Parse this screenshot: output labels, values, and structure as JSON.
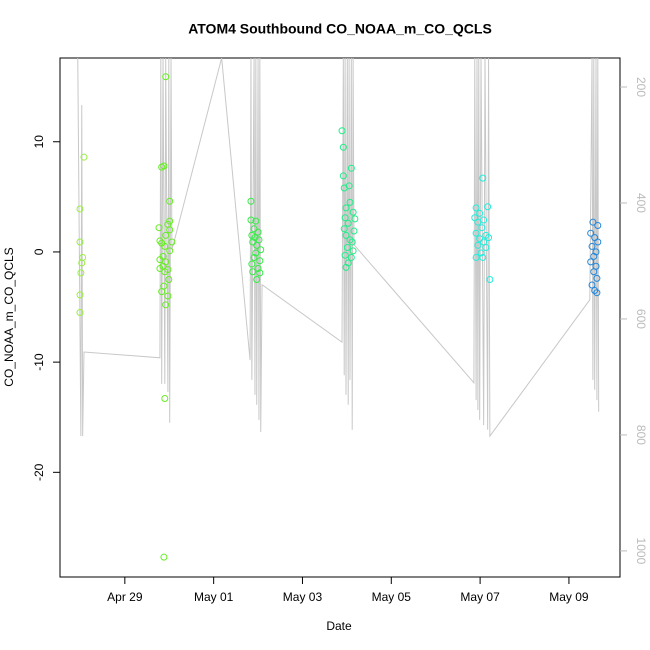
{
  "chart_data": {
    "type": "scatter",
    "title": "ATOM4 Southbound CO_NOAA_m_CO_QCLS",
    "x_label": "Date",
    "y_label": "CO_NOAA_m_CO_QCLS",
    "xlim": [
      27.54,
      40.15
    ],
    "xticks": [
      {
        "value": 29,
        "label": "Apr 29"
      },
      {
        "value": 31,
        "label": "May 01"
      },
      {
        "value": 33,
        "label": "May 03"
      },
      {
        "value": 35,
        "label": "May 05"
      },
      {
        "value": 37,
        "label": "May 07"
      },
      {
        "value": 39,
        "label": "May 09"
      }
    ],
    "ylim": [
      -29.5,
      17.6
    ],
    "yticks": [
      -20,
      -10,
      0,
      10
    ],
    "y2lim": [
      1045,
      150
    ],
    "y2ticks": [
      200,
      400,
      600,
      800,
      1000
    ],
    "y2_color": "#bbbbbb",
    "series": [
      {
        "type": "line",
        "axis": "y2",
        "color": "#c8c8c8",
        "x": [
          27.94,
          28.01,
          28.03,
          28.05,
          28.08,
          29.79,
          29.81,
          29.83,
          29.86,
          29.9,
          29.92,
          29.97,
          29.99,
          30.01,
          30.04,
          30.06,
          31.18,
          31.82,
          31.84,
          31.86,
          31.91,
          31.93,
          31.95,
          31.97,
          32.0,
          32.02,
          32.04,
          32.06,
          32.09,
          33.89,
          33.92,
          33.94,
          33.96,
          33.98,
          34.01,
          34.03,
          34.05,
          34.07,
          34.1,
          34.12,
          34.14,
          34.16,
          36.86,
          36.88,
          36.91,
          36.93,
          36.95,
          36.97,
          36.99,
          37.02,
          37.08,
          37.11,
          37.17,
          37.19,
          37.22,
          39.47,
          39.52,
          39.54,
          39.56,
          39.58,
          39.61,
          39.63,
          39.65,
          39.67
        ],
        "values": [
          150,
          802,
          231,
          802,
          657,
          667,
          150,
          712,
          150,
          712,
          150,
          726,
          150,
          779,
          150,
          481,
          150,
          671,
          150,
          705,
          150,
          731,
          150,
          748,
          150,
          774,
          150,
          795,
          541,
          640,
          150,
          697,
          150,
          731,
          150,
          748,
          150,
          705,
          150,
          791,
          150,
          472,
          710,
          150,
          740,
          150,
          757,
          150,
          774,
          150,
          783,
          150,
          791,
          150,
          802,
          567,
          150,
          705,
          150,
          722,
          150,
          740,
          150,
          760
        ]
      },
      {
        "type": "scatter",
        "color": "#99ee44",
        "x": [
          27.99,
          27.99,
          28.08,
          28.05,
          28.03,
          28.01,
          27.99,
          27.99
        ],
        "values": [
          3.9,
          0.9,
          8.6,
          -0.5,
          -1.0,
          -1.9,
          -3.9,
          -5.5
        ]
      },
      {
        "type": "scatter",
        "color": "#66ee22",
        "x": [
          29.92,
          29.83,
          29.88,
          30.01,
          30.01,
          29.97,
          29.77,
          30.01,
          29.92,
          29.79,
          29.83,
          30.06,
          29.9,
          30.01,
          29.86,
          29.79,
          29.92,
          29.86,
          29.79,
          29.97,
          29.9,
          29.99,
          29.88,
          29.83,
          29.97,
          29.92,
          29.9,
          29.88
        ],
        "values": [
          15.9,
          7.7,
          7.8,
          4.6,
          2.8,
          2.5,
          2.2,
          2.0,
          1.5,
          1.0,
          0.8,
          0.9,
          0.5,
          0.1,
          -0.4,
          -0.7,
          -0.9,
          -1.3,
          -1.5,
          -1.6,
          -1.8,
          -2.5,
          -3.1,
          -3.6,
          -4.0,
          -4.8,
          -13.3,
          -27.7
        ]
      },
      {
        "type": "scatter",
        "color": "#33ee44",
        "x": [
          31.84,
          31.84,
          31.95,
          31.91,
          32.0,
          31.86,
          31.93,
          32.02,
          31.88,
          31.97,
          32.06,
          31.95,
          31.91,
          32.04,
          31.86,
          32.0,
          31.88,
          32.04,
          31.97
        ],
        "values": [
          4.6,
          2.9,
          2.8,
          2.1,
          1.8,
          1.5,
          1.3,
          1.1,
          0.9,
          0.6,
          0.2,
          -0.1,
          -0.5,
          -0.8,
          -1.1,
          -1.5,
          -1.8,
          -1.9,
          -2.5
        ]
      },
      {
        "type": "scatter",
        "color": "#22ee88",
        "x": [
          33.89,
          33.92,
          34.1,
          33.92,
          34.05,
          33.94,
          34.07,
          33.98,
          34.14,
          33.96,
          34.18,
          34.03,
          33.94,
          34.16,
          33.98,
          34.07,
          34.12,
          34.01,
          34.14,
          33.96,
          34.1,
          34.03,
          33.98
        ],
        "values": [
          11.0,
          9.5,
          7.6,
          6.9,
          6.0,
          5.8,
          4.5,
          4.0,
          3.6,
          3.1,
          3.0,
          2.6,
          2.1,
          1.9,
          1.5,
          1.1,
          0.9,
          0.4,
          0.1,
          -0.3,
          -0.5,
          -1.0,
          -1.4
        ]
      },
      {
        "type": "scatter",
        "color": "#22eedd",
        "x": [
          37.06,
          36.91,
          37.17,
          36.99,
          36.88,
          37.08,
          36.95,
          37.04,
          36.91,
          37.13,
          36.99,
          37.19,
          37.08,
          36.95,
          37.13,
          37.02,
          36.91,
          37.06,
          37.22
        ],
        "values": [
          6.7,
          4.0,
          4.1,
          3.5,
          3.1,
          2.9,
          2.7,
          2.2,
          1.7,
          1.5,
          1.2,
          1.3,
          0.9,
          0.6,
          0.4,
          -0.1,
          -0.5,
          -0.5,
          -2.5
        ]
      },
      {
        "type": "scatter",
        "color": "#2288dd",
        "x": [
          39.54,
          39.65,
          39.49,
          39.58,
          39.65,
          39.52,
          39.61,
          39.56,
          39.49,
          39.61,
          39.56,
          39.63,
          39.52,
          39.58,
          39.63
        ],
        "values": [
          2.7,
          2.4,
          1.7,
          1.3,
          0.9,
          0.5,
          0.0,
          -0.4,
          -0.9,
          -1.3,
          -1.8,
          -2.4,
          -3.0,
          -3.5,
          -3.7
        ]
      }
    ]
  }
}
